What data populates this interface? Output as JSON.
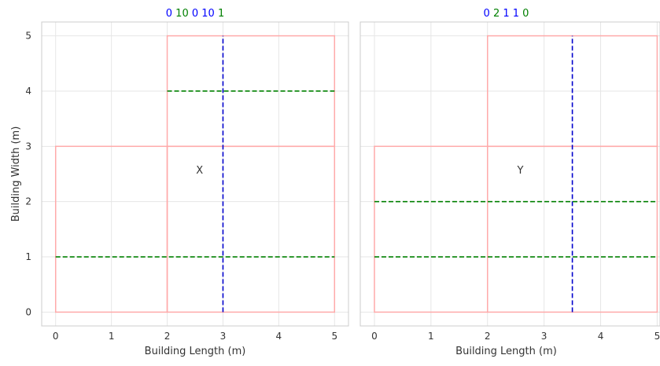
{
  "chart_data": [
    {
      "type": "line",
      "title_tokens": [
        {
          "text": "0",
          "color": "#0000ff"
        },
        {
          "text": "10",
          "color": "#008000"
        },
        {
          "text": "0",
          "color": "#0000ff"
        },
        {
          "text": "10",
          "color": "#0000ff"
        },
        {
          "text": "1",
          "color": "#008000"
        }
      ],
      "xlabel": "Building Length (m)",
      "ylabel": "Building Width (m)",
      "xlim": [
        -0.25,
        5.25
      ],
      "ylim": [
        -0.25,
        5.25
      ],
      "xticks": [
        0,
        1,
        2,
        3,
        4,
        5
      ],
      "yticks": [
        0,
        1,
        2,
        3,
        4,
        5
      ],
      "grid": true,
      "rectangles": [
        {
          "x0": 0,
          "y0": 0,
          "x1": 2,
          "y1": 3
        },
        {
          "x0": 2,
          "y0": 0,
          "x1": 5,
          "y1": 3
        },
        {
          "x0": 2,
          "y0": 3,
          "x1": 5,
          "y1": 5
        }
      ],
      "rect_color": "#ffaaaa",
      "dashed_lines": [
        {
          "orientation": "vertical",
          "value": 3,
          "from": 0,
          "to": 5,
          "color": "#0000cc"
        },
        {
          "orientation": "horizontal",
          "value": 4,
          "from": 2,
          "to": 5,
          "color": "#008000"
        },
        {
          "orientation": "horizontal",
          "value": 1,
          "from": 0,
          "to": 5,
          "color": "#008000"
        }
      ],
      "annotations": [
        {
          "text": "X",
          "x": 2.58,
          "y": 2.56
        }
      ]
    },
    {
      "type": "line",
      "title_tokens": [
        {
          "text": "0",
          "color": "#0000ff"
        },
        {
          "text": "2",
          "color": "#008000"
        },
        {
          "text": "1",
          "color": "#0000ff"
        },
        {
          "text": "1",
          "color": "#0000ff"
        },
        {
          "text": "0",
          "color": "#008000"
        }
      ],
      "xlabel": "Building Length (m)",
      "ylabel": "",
      "xlim": [
        -0.25,
        5.05
      ],
      "ylim": [
        -0.25,
        5.25
      ],
      "xticks": [
        0,
        1,
        2,
        3,
        4,
        5
      ],
      "yticks": [
        0,
        1,
        2,
        3,
        4,
        5
      ],
      "grid": true,
      "rectangles": [
        {
          "x0": 0,
          "y0": 0,
          "x1": 2,
          "y1": 3
        },
        {
          "x0": 2,
          "y0": 0,
          "x1": 5,
          "y1": 3
        },
        {
          "x0": 2,
          "y0": 3,
          "x1": 5,
          "y1": 5
        }
      ],
      "rect_color": "#ffaaaa",
      "dashed_lines": [
        {
          "orientation": "vertical",
          "value": 3.5,
          "from": 0,
          "to": 5,
          "color": "#0000cc"
        },
        {
          "orientation": "horizontal",
          "value": 2,
          "from": 0,
          "to": 5,
          "color": "#008000"
        },
        {
          "orientation": "horizontal",
          "value": 1,
          "from": 0,
          "to": 5,
          "color": "#008000"
        }
      ],
      "annotations": [
        {
          "text": "Y",
          "x": 2.58,
          "y": 2.56
        }
      ]
    }
  ]
}
